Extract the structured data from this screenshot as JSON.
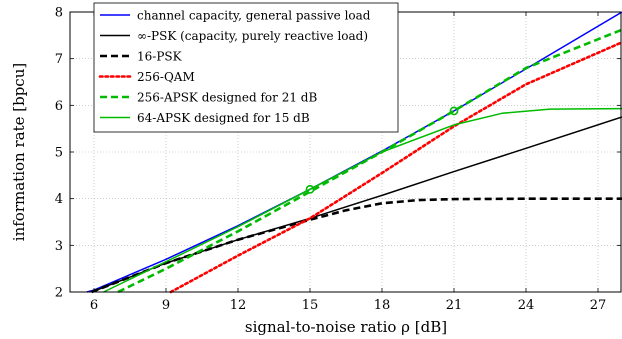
{
  "chart_data": {
    "type": "line",
    "xlabel": "signal-to-noise ratio ρ [dB]",
    "ylabel": "information rate [bpcu]",
    "xlim": [
      5,
      28
    ],
    "ylim": [
      2,
      8
    ],
    "xticks": [
      6,
      9,
      12,
      15,
      18,
      21,
      24,
      27
    ],
    "yticks": [
      2,
      3,
      4,
      5,
      6,
      7,
      8
    ],
    "grid": "dotted",
    "legend_position": "top-left",
    "series": [
      {
        "name": "channel capacity, general passive load",
        "color": "#0000ff",
        "style": "solid",
        "x": [
          5.7,
          6,
          9,
          12,
          15,
          18,
          21,
          24,
          28
        ],
        "y": [
          2.0,
          2.04,
          2.7,
          3.42,
          4.2,
          5.02,
          5.88,
          6.78,
          8.0
        ]
      },
      {
        "name": "∞-PSK (capacity, purely reactive load)",
        "color": "#000000",
        "style": "solid",
        "x": [
          5.9,
          9,
          12,
          15,
          18,
          21,
          24,
          28
        ],
        "y": [
          2.0,
          2.62,
          3.12,
          3.58,
          4.07,
          4.58,
          5.08,
          5.75
        ]
      },
      {
        "name": "16-PSK",
        "color": "#000000",
        "style": "dashed",
        "x": [
          5.9,
          9,
          12,
          15,
          16.5,
          18,
          19.5,
          21,
          24,
          28
        ],
        "y": [
          2.0,
          2.62,
          3.12,
          3.55,
          3.75,
          3.9,
          3.97,
          3.99,
          4.0,
          4.0
        ]
      },
      {
        "name": "256-QAM",
        "color": "#ff0000",
        "style": "dotted",
        "x": [
          9.2,
          12,
          15,
          18,
          21,
          24,
          28
        ],
        "y": [
          2.0,
          2.78,
          3.58,
          4.55,
          5.55,
          6.45,
          7.35
        ]
      },
      {
        "name": "256-APSK designed for 21 dB",
        "color": "#00bb00",
        "style": "dashed",
        "x": [
          7.0,
          9,
          12,
          15,
          18,
          21,
          24,
          28
        ],
        "y": [
          2.0,
          2.5,
          3.3,
          4.15,
          5.0,
          5.88,
          6.8,
          7.62
        ]
      },
      {
        "name": "64-APSK designed for 15 dB",
        "color": "#00bb00",
        "style": "solid",
        "x": [
          6.4,
          9,
          12,
          15,
          18,
          21,
          23,
          25,
          28
        ],
        "y": [
          2.0,
          2.65,
          3.4,
          4.2,
          5.0,
          5.58,
          5.83,
          5.92,
          5.93
        ]
      }
    ],
    "markers": [
      {
        "x": 15,
        "y": 4.2,
        "color": "#00bb00",
        "shape": "circle"
      },
      {
        "x": 21,
        "y": 5.88,
        "color": "#00bb00",
        "shape": "circle"
      }
    ]
  }
}
